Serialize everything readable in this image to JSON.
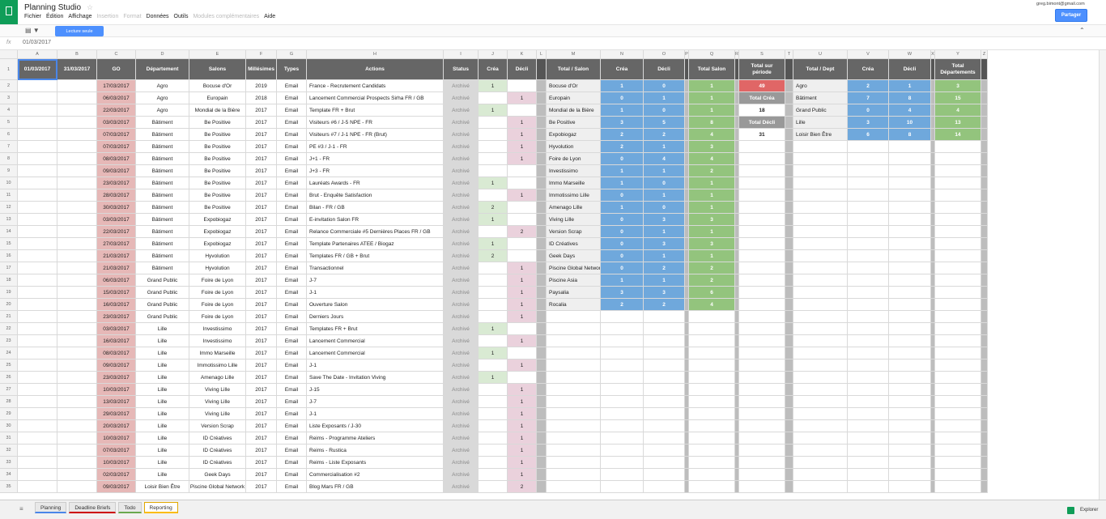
{
  "header": {
    "title": "Planning Studio",
    "menu": [
      {
        "label": "Fichier",
        "enabled": true
      },
      {
        "label": "Édition",
        "enabled": true
      },
      {
        "label": "Affichage",
        "enabled": true
      },
      {
        "label": "Insertion",
        "enabled": false
      },
      {
        "label": "Format",
        "enabled": false
      },
      {
        "label": "Données",
        "enabled": true
      },
      {
        "label": "Outils",
        "enabled": true
      },
      {
        "label": "Modules complémentaires",
        "enabled": false
      },
      {
        "label": "Aide",
        "enabled": true
      }
    ],
    "account": "greg.bimont@gmail.com",
    "share_button": "Partager"
  },
  "toolbar": {
    "mode": "Lecture seule"
  },
  "formula_bar": {
    "fx": "fx",
    "value": "01/03/2017"
  },
  "sheet": {
    "columns": [
      "A",
      "B",
      "C",
      "D",
      "E",
      "F",
      "G",
      "H",
      "I",
      "J",
      "K",
      "L",
      "M",
      "N",
      "O",
      "P",
      "Q",
      "R",
      "S",
      "T",
      "U",
      "V",
      "W",
      "X",
      "Y",
      "Z"
    ],
    "row_numbers": [
      1,
      2,
      3,
      4,
      5,
      6,
      7,
      8,
      9,
      10,
      11,
      12,
      13,
      14,
      15,
      16,
      17,
      18,
      19,
      20,
      21,
      22,
      23,
      24,
      25,
      26,
      27,
      28,
      29,
      30,
      31,
      32,
      33,
      34,
      35
    ],
    "header_row": {
      "A": "01/03/2017",
      "B": "31/03/2017",
      "C": "GO",
      "D": "Département",
      "E": "Salons",
      "F": "Millésimes",
      "G": "Types",
      "H": "Actions",
      "I": "Status",
      "J": "Créa",
      "K": "Décli",
      "M": "Total / Salon",
      "N": "Créa",
      "O": "Décli",
      "Q": "Total Salon",
      "S": "Total sur période",
      "U": "Total / Dept",
      "V": "Créa",
      "W": "Décli",
      "Y": "Total Départements"
    },
    "planning_rows": [
      [
        "17/03/2017",
        "Agro",
        "Bocuse d'Or",
        2019,
        "Email",
        "France - Recrutement Candidats",
        "Archivé",
        1,
        null
      ],
      [
        "06/03/2017",
        "Agro",
        "Europain",
        2018,
        "Email",
        "Lancement Commercial Prospects Sirha FR / GB",
        "Archivé",
        null,
        1
      ],
      [
        "22/03/2017",
        "Agro",
        "Mondial de la Bière",
        2017,
        "Email",
        "Template FR + Brut",
        "Archivé",
        1,
        null
      ],
      [
        "03/03/2017",
        "Bâtiment",
        "Be Positive",
        2017,
        "Email",
        "Visiteurs #6 / J-5 NPE - FR",
        "Archivé",
        null,
        1
      ],
      [
        "07/03/2017",
        "Bâtiment",
        "Be Positive",
        2017,
        "Email",
        "Visiteurs #7 / J-1 NPE - FR (Brut)",
        "Archivé",
        null,
        1
      ],
      [
        "07/03/2017",
        "Bâtiment",
        "Be Positive",
        2017,
        "Email",
        "PE #3 / J-1 - FR",
        "Archivé",
        null,
        1
      ],
      [
        "08/03/2017",
        "Bâtiment",
        "Be Positive",
        2017,
        "Email",
        "J+1 - FR",
        "Archivé",
        null,
        1
      ],
      [
        "09/03/2017",
        "Bâtiment",
        "Be Positive",
        2017,
        "Email",
        "J+3 - FR",
        "Archivé",
        null,
        null
      ],
      [
        "23/03/2017",
        "Bâtiment",
        "Be Positive",
        2017,
        "Email",
        "Lauréats Awards - FR",
        "Archivé",
        1,
        null
      ],
      [
        "28/03/2017",
        "Bâtiment",
        "Be Positive",
        2017,
        "Email",
        "Brut - Enquête Satisfaction",
        "Archivé",
        null,
        1
      ],
      [
        "30/03/2017",
        "Bâtiment",
        "Be Positive",
        2017,
        "Email",
        "Bilan - FR / GB",
        "Archivé",
        2,
        null
      ],
      [
        "03/03/2017",
        "Bâtiment",
        "Expobiogaz",
        2017,
        "Email",
        "E-invitation Salon FR",
        "Archivé",
        1,
        null
      ],
      [
        "22/03/2017",
        "Bâtiment",
        "Expobiogaz",
        2017,
        "Email",
        "Relance Commerciale #5 Dernières Places FR / GB",
        "Archivé",
        null,
        2
      ],
      [
        "27/03/2017",
        "Bâtiment",
        "Expobiogaz",
        2017,
        "Email",
        "Template Partenaires ATEE / Biogaz",
        "Archivé",
        1,
        null
      ],
      [
        "21/03/2017",
        "Bâtiment",
        "Hyvolution",
        2017,
        "Email",
        "Templates FR / GB + Brut",
        "Archivé",
        2,
        null
      ],
      [
        "21/03/2017",
        "Bâtiment",
        "Hyvolution",
        2017,
        "Email",
        "Transactionnel",
        "Archivé",
        null,
        1
      ],
      [
        "06/03/2017",
        "Grand Public",
        "Foire de Lyon",
        2017,
        "Email",
        "J-7",
        "Archivé",
        null,
        1
      ],
      [
        "15/03/2017",
        "Grand Public",
        "Foire de Lyon",
        2017,
        "Email",
        "J-1",
        "Archivé",
        null,
        1
      ],
      [
        "16/03/2017",
        "Grand Public",
        "Foire de Lyon",
        2017,
        "Email",
        "Ouverture Salon",
        "Archivé",
        null,
        1
      ],
      [
        "23/03/2017",
        "Grand Public",
        "Foire de Lyon",
        2017,
        "Email",
        "Derniers Jours",
        "Archivé",
        null,
        1
      ],
      [
        "03/03/2017",
        "Lille",
        "Investissimo",
        2017,
        "Email",
        "Templates FR + Brut",
        "Archivé",
        1,
        null
      ],
      [
        "16/03/2017",
        "Lille",
        "Investissimo",
        2017,
        "Email",
        "Lancement Commercial",
        "Archivé",
        null,
        1
      ],
      [
        "08/03/2017",
        "Lille",
        "Immo Marseille",
        2017,
        "Email",
        "Lancement Commercial",
        "Archivé",
        1,
        null
      ],
      [
        "09/03/2017",
        "Lille",
        "Immotissimo Lille",
        2017,
        "Email",
        "J-1",
        "Archivé",
        null,
        1
      ],
      [
        "23/03/2017",
        "Lille",
        "Amenago Lille",
        2017,
        "Email",
        "Save The Date - Invitation Viving",
        "Archivé",
        1,
        null
      ],
      [
        "10/03/2017",
        "Lille",
        "Viving Lille",
        2017,
        "Email",
        "J-15",
        "Archivé",
        null,
        1
      ],
      [
        "13/03/2017",
        "Lille",
        "Viving Lille",
        2017,
        "Email",
        "J-7",
        "Archivé",
        null,
        1
      ],
      [
        "29/03/2017",
        "Lille",
        "Viving Lille",
        2017,
        "Email",
        "J-1",
        "Archivé",
        null,
        1
      ],
      [
        "20/03/2017",
        "Lille",
        "Version Scrap",
        2017,
        "Email",
        "Liste Exposants / J-30",
        "Archivé",
        null,
        1
      ],
      [
        "10/03/2017",
        "Lille",
        "ID Créatives",
        2017,
        "Email",
        "Reims - Programme Ateliers",
        "Archivé",
        null,
        1
      ],
      [
        "07/03/2017",
        "Lille",
        "ID Créatives",
        2017,
        "Email",
        "Reims - Rustica",
        "Archivé",
        null,
        1
      ],
      [
        "10/03/2017",
        "Lille",
        "ID Créatives",
        2017,
        "Email",
        "Reims - Liste Exposants",
        "Archivé",
        null,
        1
      ],
      [
        "02/03/2017",
        "Lille",
        "Geek Days",
        2017,
        "Email",
        "Commercialisation #2",
        "Archivé",
        null,
        1
      ],
      [
        "09/03/2017",
        "Loisir Bien Être",
        "Piscine Global Network",
        2017,
        "Email",
        "Blog Mars FR / GB",
        "Archivé",
        null,
        2
      ]
    ],
    "salon_totals": [
      [
        "Bocuse d'Or",
        1,
        0,
        1
      ],
      [
        "Europain",
        0,
        1,
        1
      ],
      [
        "Mondial de la Bière",
        1,
        0,
        1
      ],
      [
        "Be Positive",
        3,
        5,
        8
      ],
      [
        "Expobiogaz",
        2,
        2,
        4
      ],
      [
        "Hyvolution",
        2,
        1,
        3
      ],
      [
        "Foire de Lyon",
        0,
        4,
        4
      ],
      [
        "Investissimo",
        1,
        1,
        2
      ],
      [
        "Immo Marseille",
        1,
        0,
        1
      ],
      [
        "Immotissimo Lille",
        0,
        1,
        1
      ],
      [
        "Amenago Lille",
        1,
        0,
        1
      ],
      [
        "Viving Lille",
        0,
        3,
        3
      ],
      [
        "Version Scrap",
        0,
        1,
        1
      ],
      [
        "ID Créatives",
        0,
        3,
        3
      ],
      [
        "Geek Days",
        0,
        1,
        1
      ],
      [
        "Piscine Global Network",
        0,
        2,
        2
      ],
      [
        "Piscine Asia",
        1,
        1,
        2
      ],
      [
        "Paysalia",
        3,
        3,
        6
      ],
      [
        "Rocalia",
        2,
        2,
        4
      ]
    ],
    "period_totals": {
      "total": 49,
      "crea_label": "Total Créa",
      "crea": 18,
      "decli_label": "Total Décli",
      "decli": 31
    },
    "dept_totals": [
      [
        "Agro",
        2,
        1,
        3
      ],
      [
        "Bâtiment",
        7,
        8,
        15
      ],
      [
        "Grand Public",
        0,
        4,
        4
      ],
      [
        "Lille",
        3,
        10,
        13
      ],
      [
        "Loisir Bien Être",
        6,
        8,
        14
      ]
    ]
  },
  "tabs": {
    "items": [
      "Planning",
      "Deadline Briefs",
      "Todo",
      "Reporting"
    ],
    "active": "Reporting"
  },
  "explore_button": "Explorer"
}
